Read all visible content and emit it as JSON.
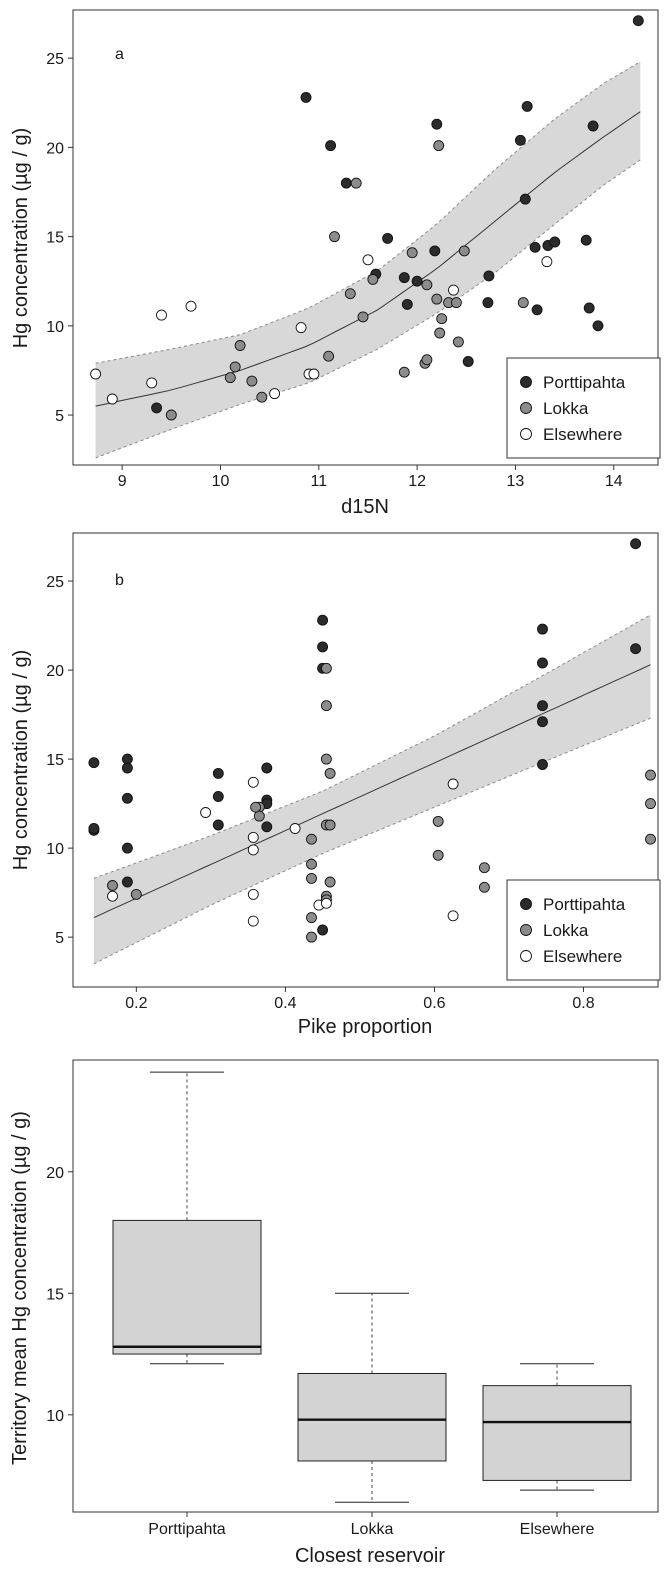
{
  "chart_data": [
    {
      "type": "scatter",
      "panel_label": "a",
      "xlabel": "d15N",
      "ylabel": "Hg concentration (µg / g)",
      "xlim": [
        8.5,
        14.45
      ],
      "ylim": [
        2.2,
        27.7
      ],
      "xticks": [
        9,
        10,
        11,
        12,
        13,
        14
      ],
      "yticks": [
        5,
        10,
        15,
        20,
        25
      ],
      "legend": {
        "position": "bottom-right",
        "entries": [
          "Porttipahta",
          "Lokka",
          "Elsewhere"
        ]
      },
      "series": [
        {
          "name": "Porttipahta",
          "color": "#2b2b2b",
          "points": [
            [
              9.35,
              5.4
            ],
            [
              10.87,
              22.8
            ],
            [
              11.12,
              20.1
            ],
            [
              11.28,
              18.0
            ],
            [
              11.58,
              12.9
            ],
            [
              11.7,
              14.9
            ],
            [
              11.87,
              12.7
            ],
            [
              11.9,
              11.2
            ],
            [
              12.0,
              12.5
            ],
            [
              12.18,
              14.2
            ],
            [
              12.2,
              21.3
            ],
            [
              12.52,
              8.0
            ],
            [
              12.72,
              11.3
            ],
            [
              12.73,
              12.8
            ],
            [
              13.05,
              20.4
            ],
            [
              13.1,
              17.1
            ],
            [
              13.12,
              22.3
            ],
            [
              13.2,
              14.4
            ],
            [
              13.22,
              10.9
            ],
            [
              13.33,
              14.5
            ],
            [
              13.4,
              14.7
            ],
            [
              13.72,
              14.8
            ],
            [
              13.75,
              11.0
            ],
            [
              13.79,
              21.2
            ],
            [
              13.84,
              10.0
            ],
            [
              14.25,
              27.1
            ]
          ]
        },
        {
          "name": "Lokka",
          "color": "#8c8c8c",
          "points": [
            [
              9.5,
              5.0
            ],
            [
              10.1,
              7.1
            ],
            [
              10.15,
              7.7
            ],
            [
              10.2,
              8.9
            ],
            [
              10.32,
              6.9
            ],
            [
              10.42,
              6.0
            ],
            [
              11.1,
              8.3
            ],
            [
              11.16,
              15.0
            ],
            [
              11.32,
              11.8
            ],
            [
              11.38,
              18.0
            ],
            [
              11.45,
              10.5
            ],
            [
              11.55,
              12.6
            ],
            [
              11.87,
              7.4
            ],
            [
              11.95,
              14.1
            ],
            [
              12.08,
              7.9
            ],
            [
              12.1,
              8.1
            ],
            [
              12.1,
              12.3
            ],
            [
              12.2,
              11.5
            ],
            [
              12.22,
              20.1
            ],
            [
              12.23,
              9.6
            ],
            [
              12.25,
              10.4
            ],
            [
              12.32,
              11.3
            ],
            [
              12.4,
              11.3
            ],
            [
              12.42,
              9.1
            ],
            [
              12.48,
              14.2
            ],
            [
              13.08,
              11.3
            ]
          ]
        },
        {
          "name": "Elsewhere",
          "color": "#ffffff",
          "points": [
            [
              8.73,
              7.3
            ],
            [
              8.9,
              5.9
            ],
            [
              9.3,
              6.8
            ],
            [
              9.4,
              10.6
            ],
            [
              9.7,
              11.1
            ],
            [
              10.55,
              6.2
            ],
            [
              10.82,
              9.9
            ],
            [
              10.9,
              7.3
            ],
            [
              10.95,
              7.3
            ],
            [
              11.5,
              13.7
            ],
            [
              12.37,
              12.0
            ],
            [
              13.32,
              13.6
            ]
          ]
        }
      ],
      "fit_curve": {
        "x": [
          8.73,
          9.5,
          10.2,
          10.9,
          11.6,
          12.2,
          12.8,
          13.4,
          13.9,
          14.27
        ],
        "y": [
          5.5,
          6.4,
          7.5,
          8.9,
          10.9,
          13.2,
          15.9,
          18.6,
          20.6,
          22.0
        ]
      },
      "ci_band": {
        "x": [
          8.73,
          9.5,
          10.2,
          10.9,
          11.6,
          12.2,
          12.8,
          13.4,
          13.9,
          14.27
        ],
        "lower": [
          2.6,
          4.2,
          5.6,
          6.8,
          8.7,
          10.7,
          13.0,
          15.7,
          17.9,
          19.3
        ],
        "upper": [
          7.9,
          8.7,
          9.5,
          11.0,
          13.1,
          15.7,
          18.8,
          21.6,
          23.6,
          24.8
        ]
      }
    },
    {
      "type": "scatter",
      "panel_label": "b",
      "xlabel": "Pike proportion",
      "ylabel": "Hg concentration (µg / g)",
      "xlim": [
        0.115,
        0.9
      ],
      "ylim": [
        2.2,
        27.7
      ],
      "xticks": [
        0.2,
        0.4,
        0.6,
        0.8
      ],
      "yticks": [
        5,
        10,
        15,
        20,
        25
      ],
      "legend": {
        "position": "bottom-right",
        "entries": [
          "Porttipahta",
          "Lokka",
          "Elsewhere"
        ]
      },
      "series": [
        {
          "name": "Porttipahta",
          "color": "#2b2b2b",
          "points": [
            [
              0.143,
              14.8
            ],
            [
              0.143,
              11.0
            ],
            [
              0.143,
              11.1
            ],
            [
              0.188,
              15.0
            ],
            [
              0.188,
              14.5
            ],
            [
              0.188,
              12.8
            ],
            [
              0.188,
              10.0
            ],
            [
              0.188,
              8.1
            ],
            [
              0.31,
              14.2
            ],
            [
              0.31,
              12.9
            ],
            [
              0.31,
              11.3
            ],
            [
              0.375,
              14.5
            ],
            [
              0.375,
              12.7
            ],
            [
              0.375,
              12.5
            ],
            [
              0.375,
              11.2
            ],
            [
              0.45,
              22.8
            ],
            [
              0.45,
              21.3
            ],
            [
              0.45,
              20.1
            ],
            [
              0.45,
              5.4
            ],
            [
              0.745,
              22.3
            ],
            [
              0.745,
              20.4
            ],
            [
              0.745,
              18.0
            ],
            [
              0.745,
              17.1
            ],
            [
              0.745,
              14.7
            ],
            [
              0.87,
              27.1
            ],
            [
              0.87,
              21.2
            ]
          ]
        },
        {
          "name": "Lokka",
          "color": "#8c8c8c",
          "points": [
            [
              0.168,
              7.9
            ],
            [
              0.2,
              7.4
            ],
            [
              0.365,
              12.3
            ],
            [
              0.365,
              11.8
            ],
            [
              0.36,
              12.3
            ],
            [
              0.435,
              10.5
            ],
            [
              0.435,
              9.1
            ],
            [
              0.435,
              8.3
            ],
            [
              0.435,
              6.1
            ],
            [
              0.435,
              5.0
            ],
            [
              0.455,
              20.1
            ],
            [
              0.455,
              18.0
            ],
            [
              0.455,
              15.0
            ],
            [
              0.455,
              11.3
            ],
            [
              0.455,
              7.3
            ],
            [
              0.455,
              7.1
            ],
            [
              0.46,
              14.2
            ],
            [
              0.46,
              11.3
            ],
            [
              0.46,
              8.1
            ],
            [
              0.605,
              11.5
            ],
            [
              0.605,
              9.6
            ],
            [
              0.667,
              8.9
            ],
            [
              0.667,
              7.8
            ],
            [
              0.89,
              14.1
            ],
            [
              0.89,
              12.5
            ],
            [
              0.89,
              10.5
            ]
          ]
        },
        {
          "name": "Elsewhere",
          "color": "#ffffff",
          "points": [
            [
              0.168,
              7.3
            ],
            [
              0.293,
              12.0
            ],
            [
              0.357,
              13.7
            ],
            [
              0.357,
              10.6
            ],
            [
              0.357,
              9.9
            ],
            [
              0.357,
              7.4
            ],
            [
              0.357,
              5.9
            ],
            [
              0.413,
              11.1
            ],
            [
              0.445,
              6.8
            ],
            [
              0.625,
              6.2
            ],
            [
              0.625,
              13.6
            ],
            [
              0.455,
              6.9
            ]
          ]
        }
      ],
      "fit_curve": {
        "x": [
          0.143,
          0.89
        ],
        "y": [
          6.1,
          20.3
        ]
      },
      "ci_band": {
        "x": [
          0.143,
          0.3,
          0.45,
          0.6,
          0.75,
          0.89
        ],
        "lower": [
          3.5,
          6.8,
          9.7,
          12.3,
          14.9,
          17.3
        ],
        "upper": [
          8.3,
          10.7,
          13.2,
          16.3,
          19.8,
          23.1
        ]
      }
    },
    {
      "type": "box",
      "xlabel": "Closest reservoir",
      "ylabel": "Territory mean Hg concentration (µg / g)",
      "ylim": [
        6.0,
        24.6
      ],
      "yticks": [
        10,
        15,
        20
      ],
      "categories": [
        "Porttipahta",
        "Lokka",
        "Elsewhere"
      ],
      "boxes": [
        {
          "category": "Porttipahta",
          "min": 12.1,
          "q1": 12.5,
          "median": 12.8,
          "q3": 18.0,
          "max": 24.1
        },
        {
          "category": "Lokka",
          "min": 6.4,
          "q1": 8.1,
          "median": 9.8,
          "q3": 11.7,
          "max": 15.0
        },
        {
          "category": "Elsewhere",
          "min": 6.9,
          "q1": 7.3,
          "median": 9.7,
          "q3": 11.2,
          "max": 12.1
        }
      ]
    }
  ]
}
